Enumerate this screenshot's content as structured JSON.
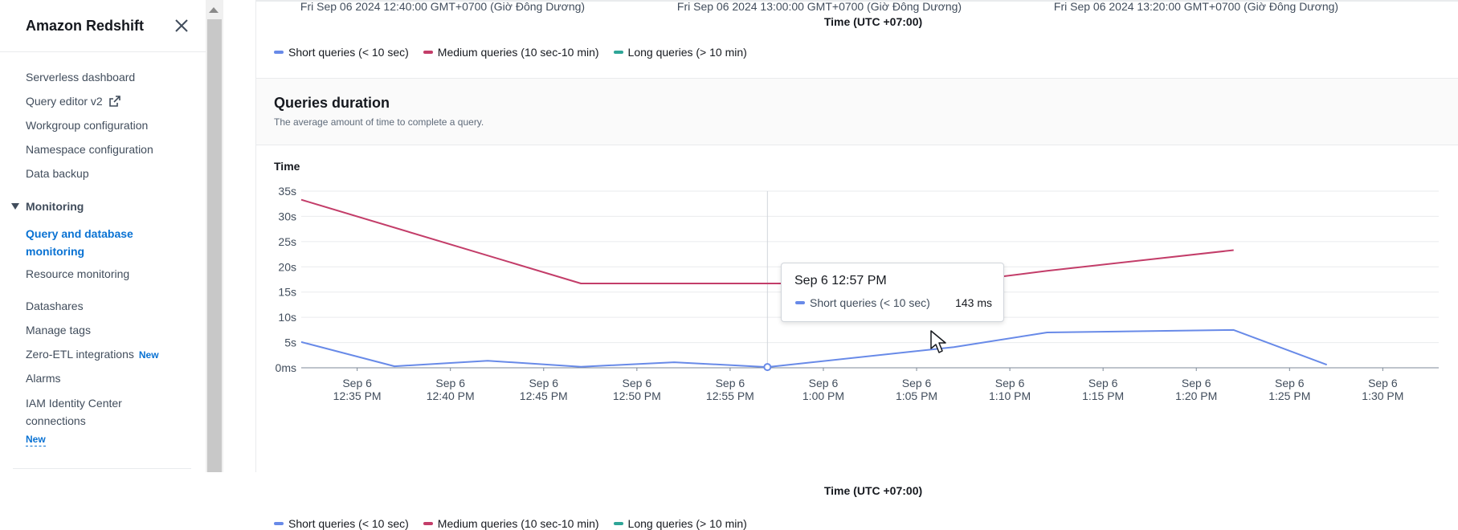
{
  "sidebar": {
    "title": "Amazon Redshift",
    "items": [
      {
        "label": "Serverless dashboard"
      },
      {
        "label": "Query editor v2"
      },
      {
        "label": "Workgroup configuration"
      },
      {
        "label": "Namespace configuration"
      },
      {
        "label": "Data backup"
      }
    ],
    "monitoring": {
      "label": "Monitoring",
      "items": [
        {
          "label": "Query and database",
          "label2": "monitoring"
        },
        {
          "label": "Resource monitoring"
        }
      ]
    },
    "items2": [
      {
        "label": "Datashares"
      },
      {
        "label": "Manage tags"
      },
      {
        "label": "Zero-ETL integrations",
        "badge": "New"
      },
      {
        "label": "Alarms"
      },
      {
        "label": "IAM Identity Center",
        "label2": "connections",
        "badge": "New"
      }
    ]
  },
  "top_chart": {
    "ticks": [
      "Fri Sep 06 2024 12:40:00 GMT+0700 (Giờ Đông Dương)",
      "Fri Sep 06 2024 13:00:00 GMT+0700 (Giờ Đông Dương)",
      "Fri Sep 06 2024 13:20:00 GMT+0700 (Giờ Đông Dương)"
    ],
    "axis_title": "Time (UTC +07:00)"
  },
  "legend": [
    {
      "label": "Short queries (< 10 sec)",
      "color": "#688ae8"
    },
    {
      "label": "Medium queries (10 sec-10 min)",
      "color": "#c33d69"
    },
    {
      "label": "Long queries (> 10 min)",
      "color": "#2ea597"
    }
  ],
  "panel": {
    "title": "Queries duration",
    "description": "The average amount of time to complete a query."
  },
  "chart_data": {
    "type": "line",
    "ylabel": "Time",
    "xlabel": "Time (UTC +07:00)",
    "ylim": [
      0,
      35
    ],
    "y_ticks": [
      "0ms",
      "5s",
      "10s",
      "15s",
      "20s",
      "25s",
      "30s",
      "35s"
    ],
    "x_ticks": [
      [
        "Sep 6",
        "12:35 PM"
      ],
      [
        "Sep 6",
        "12:40 PM"
      ],
      [
        "Sep 6",
        "12:45 PM"
      ],
      [
        "Sep 6",
        "12:50 PM"
      ],
      [
        "Sep 6",
        "12:55 PM"
      ],
      [
        "Sep 6",
        "1:00 PM"
      ],
      [
        "Sep 6",
        "1:05 PM"
      ],
      [
        "Sep 6",
        "1:10 PM"
      ],
      [
        "Sep 6",
        "1:15 PM"
      ],
      [
        "Sep 6",
        "1:20 PM"
      ],
      [
        "Sep 6",
        "1:25 PM"
      ],
      [
        "Sep 6",
        "1:30 PM"
      ]
    ],
    "x_minutes_range": [
      -28,
      33
    ],
    "series": [
      {
        "name": "Short queries (< 10 sec)",
        "color": "#688ae8",
        "points": [
          [
            -28,
            5.1
          ],
          [
            -23,
            0.3
          ],
          [
            -18,
            1.4
          ],
          [
            -13,
            0.2
          ],
          [
            -8,
            1.1
          ],
          [
            -3,
            0.143
          ],
          [
            7,
            4.1
          ],
          [
            12,
            7.0
          ],
          [
            22,
            7.5
          ],
          [
            27,
            0.6
          ]
        ]
      },
      {
        "name": "Medium queries (10 sec-10 min)",
        "color": "#c33d69",
        "points": [
          [
            -28,
            33.3
          ],
          [
            -13,
            16.7
          ],
          [
            -3,
            16.7
          ],
          [
            2,
            16.7
          ],
          [
            7,
            16.9
          ],
          [
            12,
            19.2
          ],
          [
            22,
            23.3
          ]
        ]
      }
    ],
    "grid": true,
    "legend_position": "bottom-left"
  },
  "tooltip": {
    "title": "Sep 6 12:57 PM",
    "series": "Short queries (< 10 sec)",
    "value": "143 ms",
    "color": "#688ae8"
  }
}
